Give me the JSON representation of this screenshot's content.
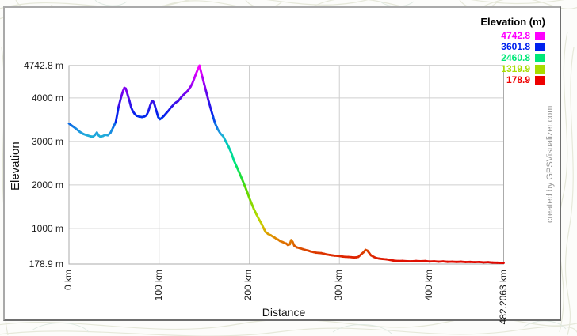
{
  "credit": "created by GPSVisualizer.com",
  "legend": {
    "title": "Elevation (m)",
    "entries": [
      {
        "label": "4742.8",
        "color": "#FF00FF"
      },
      {
        "label": "3601.8",
        "color": "#0022EE"
      },
      {
        "label": "2460.8",
        "color": "#00E878"
      },
      {
        "label": "1319.9",
        "color": "#A8DC00"
      },
      {
        "label": "178.9",
        "color": "#EE0000"
      }
    ]
  },
  "axes": {
    "y_title": "Elevation",
    "x_title": "Distance",
    "y_ticks": [
      {
        "label": "4742.8 m",
        "value": 4742.8,
        "grid": false
      },
      {
        "label": "4000 m",
        "value": 4000,
        "grid": true
      },
      {
        "label": "3000 m",
        "value": 3000,
        "grid": true
      },
      {
        "label": "2000 m",
        "value": 2000,
        "grid": true
      },
      {
        "label": "1000 m",
        "value": 1000,
        "grid": true
      },
      {
        "label": "178.9 m",
        "value": 178.9,
        "grid": false
      }
    ],
    "x_ticks": [
      {
        "label": "0 km",
        "value": 0,
        "grid": false
      },
      {
        "label": "100 km",
        "value": 100,
        "grid": true
      },
      {
        "label": "200 km",
        "value": 200,
        "grid": true
      },
      {
        "label": "300 km",
        "value": 300,
        "grid": true
      },
      {
        "label": "400 km",
        "value": 400,
        "grid": true
      },
      {
        "label": "482.2063 km",
        "value": 482.2063,
        "grid": false
      }
    ]
  },
  "colors": {
    "grid": "#CFCFCF",
    "plot_border": "#ABABAB",
    "frame_light": "#a9a9a9",
    "frame_dark": "#6e6e6e",
    "credit_text": "#999999"
  },
  "chart_data": {
    "type": "line",
    "title": "",
    "xlabel": "Distance",
    "ylabel": "Elevation",
    "x_units": "km",
    "y_units": "m",
    "xlim": [
      0,
      482.2063
    ],
    "ylim": [
      178.9,
      4742.8
    ],
    "grid": true,
    "legend_position": "top-right",
    "series_name": "Elevation (m)",
    "color_scale": [
      {
        "value": 4742.8,
        "color": "#FF00FF"
      },
      {
        "value": 3601.8,
        "color": "#0022EE"
      },
      {
        "value": 2460.8,
        "color": "#00E878"
      },
      {
        "value": 1319.9,
        "color": "#A8DC00"
      },
      {
        "value": 178.9,
        "color": "#EE0000"
      }
    ],
    "gradient_stops": [
      {
        "value": 4742.8,
        "color": "#FF00FF"
      },
      {
        "value": 4450,
        "color": "#B800F8"
      },
      {
        "value": 4150,
        "color": "#7A00F0"
      },
      {
        "value": 3900,
        "color": "#3C10E8"
      },
      {
        "value": 3601.8,
        "color": "#0022EE"
      },
      {
        "value": 3400,
        "color": "#0A66E6"
      },
      {
        "value": 3150,
        "color": "#22A8DC"
      },
      {
        "value": 2950,
        "color": "#00C6C0"
      },
      {
        "value": 2700,
        "color": "#00D89A"
      },
      {
        "value": 2460.8,
        "color": "#00E878"
      },
      {
        "value": 2150,
        "color": "#22DC33"
      },
      {
        "value": 1900,
        "color": "#55D800"
      },
      {
        "value": 1600,
        "color": "#80D800"
      },
      {
        "value": 1319.9,
        "color": "#A8DC00"
      },
      {
        "value": 1100,
        "color": "#C8CC00"
      },
      {
        "value": 950,
        "color": "#D8B000"
      },
      {
        "value": 760,
        "color": "#E08800"
      },
      {
        "value": 600,
        "color": "#DC6000"
      },
      {
        "value": 450,
        "color": "#DC3C00"
      },
      {
        "value": 178.9,
        "color": "#E00000"
      }
    ],
    "profile": [
      [
        0,
        3410
      ],
      [
        4,
        3350
      ],
      [
        8,
        3290
      ],
      [
        12,
        3220
      ],
      [
        16,
        3170
      ],
      [
        20,
        3140
      ],
      [
        24,
        3115
      ],
      [
        27,
        3110
      ],
      [
        29,
        3150
      ],
      [
        31,
        3205
      ],
      [
        33,
        3135
      ],
      [
        35,
        3105
      ],
      [
        38,
        3125
      ],
      [
        40,
        3150
      ],
      [
        43,
        3140
      ],
      [
        46,
        3195
      ],
      [
        49,
        3320
      ],
      [
        52,
        3450
      ],
      [
        55,
        3790
      ],
      [
        58,
        4030
      ],
      [
        60,
        4160
      ],
      [
        61.5,
        4232
      ],
      [
        63,
        4215
      ],
      [
        65,
        4080
      ],
      [
        67,
        3940
      ],
      [
        69,
        3780
      ],
      [
        71,
        3690
      ],
      [
        73,
        3630
      ],
      [
        75,
        3590
      ],
      [
        78,
        3570
      ],
      [
        81,
        3560
      ],
      [
        84,
        3575
      ],
      [
        86,
        3600
      ],
      [
        88,
        3690
      ],
      [
        90,
        3820
      ],
      [
        92,
        3930
      ],
      [
        93.5,
        3915
      ],
      [
        95,
        3840
      ],
      [
        97,
        3700
      ],
      [
        99,
        3560
      ],
      [
        101,
        3510
      ],
      [
        103,
        3540
      ],
      [
        105,
        3580
      ],
      [
        108,
        3650
      ],
      [
        111,
        3720
      ],
      [
        113,
        3780
      ],
      [
        115,
        3820
      ],
      [
        117,
        3870
      ],
      [
        119,
        3900
      ],
      [
        121,
        3925
      ],
      [
        123,
        3975
      ],
      [
        125,
        4030
      ],
      [
        127,
        4070
      ],
      [
        129,
        4110
      ],
      [
        131,
        4145
      ],
      [
        133,
        4200
      ],
      [
        135,
        4260
      ],
      [
        137,
        4340
      ],
      [
        139,
        4450
      ],
      [
        141,
        4560
      ],
      [
        143,
        4660
      ],
      [
        144.8,
        4742
      ],
      [
        146,
        4640
      ],
      [
        148,
        4480
      ],
      [
        150,
        4320
      ],
      [
        152,
        4160
      ],
      [
        155,
        3920
      ],
      [
        158,
        3700
      ],
      [
        160,
        3560
      ],
      [
        162,
        3420
      ],
      [
        165,
        3280
      ],
      [
        168,
        3180
      ],
      [
        171,
        3120
      ],
      [
        174,
        3000
      ],
      [
        177,
        2880
      ],
      [
        180,
        2740
      ],
      [
        183,
        2560
      ],
      [
        186,
        2420
      ],
      [
        189,
        2280
      ],
      [
        192,
        2130
      ],
      [
        195,
        1980
      ],
      [
        198,
        1820
      ],
      [
        200,
        1700
      ],
      [
        202,
        1600
      ],
      [
        205,
        1450
      ],
      [
        208,
        1320
      ],
      [
        211,
        1200
      ],
      [
        214,
        1090
      ],
      [
        216,
        1000
      ],
      [
        218,
        920
      ],
      [
        221,
        870
      ],
      [
        224,
        840
      ],
      [
        226,
        815
      ],
      [
        228,
        790
      ],
      [
        230,
        760
      ],
      [
        232,
        740
      ],
      [
        234,
        710
      ],
      [
        237,
        685
      ],
      [
        239,
        665
      ],
      [
        241,
        650
      ],
      [
        243,
        615
      ],
      [
        245,
        635
      ],
      [
        246.5,
        730
      ],
      [
        248,
        690
      ],
      [
        250,
        600
      ],
      [
        253,
        560
      ],
      [
        256,
        545
      ],
      [
        259,
        525
      ],
      [
        262,
        505
      ],
      [
        265,
        490
      ],
      [
        268,
        470
      ],
      [
        271,
        455
      ],
      [
        274,
        440
      ],
      [
        277,
        435
      ],
      [
        280,
        430
      ],
      [
        283,
        415
      ],
      [
        286,
        400
      ],
      [
        289,
        390
      ],
      [
        292,
        380
      ],
      [
        295,
        372
      ],
      [
        298,
        368
      ],
      [
        301,
        360
      ],
      [
        304,
        350
      ],
      [
        307,
        345
      ],
      [
        310,
        342
      ],
      [
        313,
        338
      ],
      [
        316,
        330
      ],
      [
        319,
        335
      ],
      [
        321,
        345
      ],
      [
        324,
        400
      ],
      [
        327,
        455
      ],
      [
        329,
        505
      ],
      [
        331,
        488
      ],
      [
        333,
        435
      ],
      [
        335,
        380
      ],
      [
        338,
        345
      ],
      [
        341,
        318
      ],
      [
        344,
        305
      ],
      [
        348,
        295
      ],
      [
        352,
        288
      ],
      [
        356,
        275
      ],
      [
        360,
        258
      ],
      [
        365,
        250
      ],
      [
        370,
        252
      ],
      [
        375,
        245
      ],
      [
        380,
        242
      ],
      [
        385,
        250
      ],
      [
        390,
        244
      ],
      [
        395,
        248
      ],
      [
        400,
        238
      ],
      [
        405,
        242
      ],
      [
        410,
        234
      ],
      [
        415,
        240
      ],
      [
        420,
        230
      ],
      [
        425,
        234
      ],
      [
        430,
        228
      ],
      [
        435,
        232
      ],
      [
        440,
        225
      ],
      [
        445,
        228
      ],
      [
        450,
        222
      ],
      [
        455,
        226
      ],
      [
        460,
        218
      ],
      [
        465,
        222
      ],
      [
        470,
        212
      ],
      [
        475,
        210
      ],
      [
        478,
        207
      ],
      [
        482.2,
        205
      ]
    ]
  }
}
